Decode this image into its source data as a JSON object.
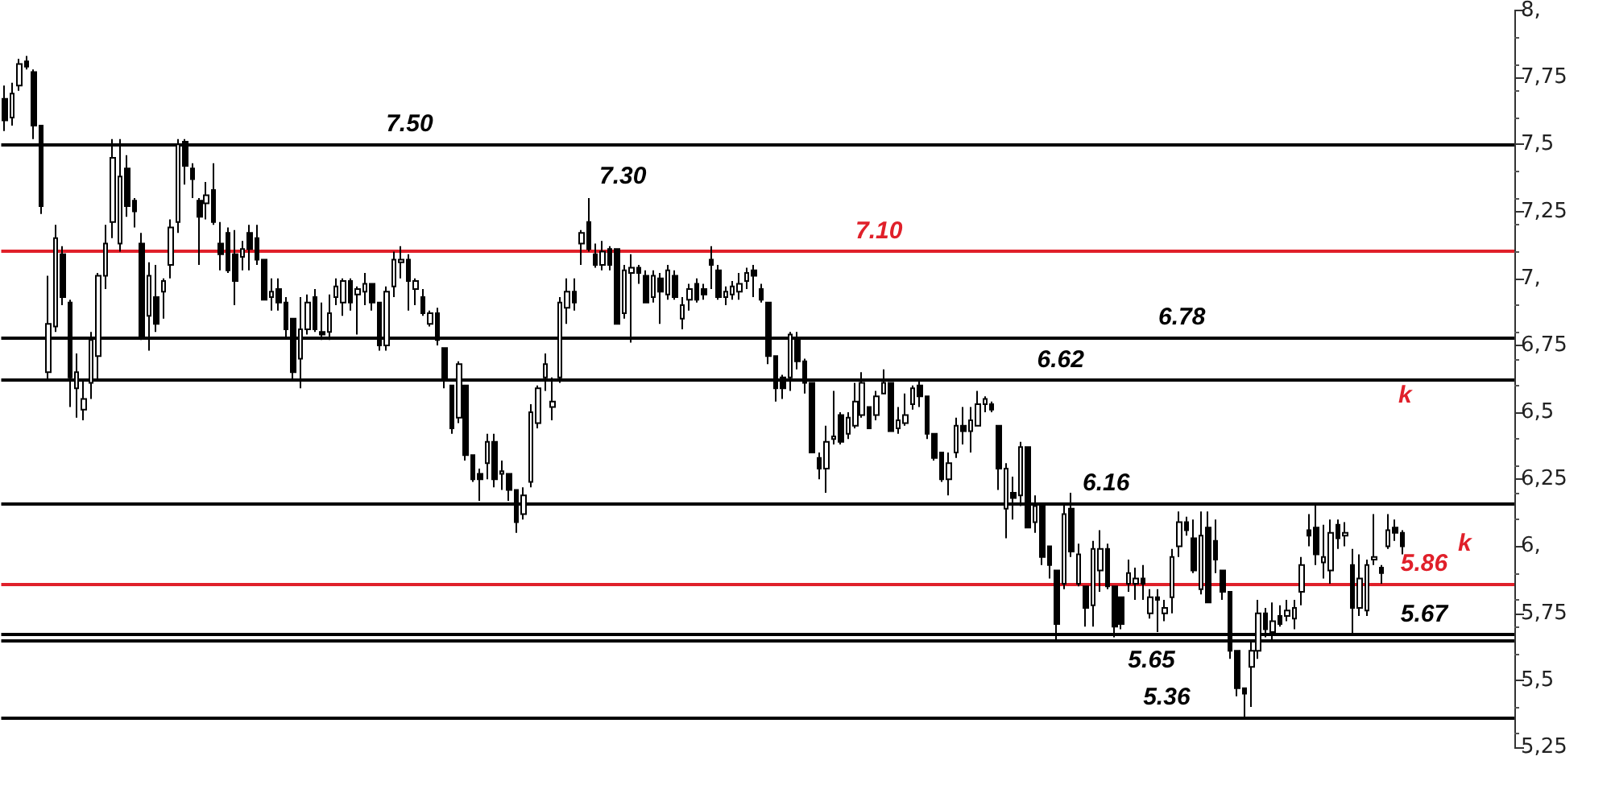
{
  "chart_data": {
    "type": "candlestick",
    "categories": [
      null,
      null,
      null,
      null,
      null,
      null,
      null,
      null,
      null,
      null,
      null,
      null,
      null,
      null,
      null,
      null,
      null,
      null,
      null,
      null,
      null,
      null,
      null,
      null,
      null,
      null,
      null,
      null,
      null,
      null,
      null,
      null,
      null,
      null,
      null,
      null,
      null,
      null,
      null,
      null,
      null,
      null,
      null,
      null,
      null,
      null,
      null,
      null,
      null,
      null,
      null,
      null,
      null,
      null,
      null,
      null,
      null,
      null,
      null,
      null,
      null,
      null,
      null,
      null,
      null,
      null,
      null,
      null,
      null,
      null,
      null,
      null,
      null,
      null,
      null,
      null,
      null,
      null,
      null,
      null,
      null,
      null,
      null,
      null,
      null,
      null,
      null,
      null,
      null,
      null,
      null,
      null,
      null,
      null,
      null,
      null,
      null,
      null,
      null,
      null,
      null,
      null,
      null,
      null,
      null,
      null,
      null,
      null,
      null,
      null,
      null,
      null,
      null,
      null,
      null,
      null,
      null,
      null,
      null,
      null,
      null,
      null,
      null,
      null,
      null,
      null,
      null,
      null,
      null,
      null,
      null,
      null,
      null,
      null,
      null,
      null,
      null,
      null,
      null,
      null,
      null,
      null,
      null,
      null,
      null,
      null,
      null,
      null,
      null,
      null,
      null,
      null,
      null,
      null,
      null,
      null,
      null,
      null,
      null,
      null,
      null,
      null,
      null,
      null,
      null,
      null,
      null,
      null,
      null,
      null,
      null,
      null,
      null,
      null,
      null,
      null,
      null,
      null,
      null,
      null,
      null,
      null,
      null,
      null,
      null,
      null,
      null,
      null,
      null,
      null,
      null,
      null,
      null,
      null,
      null,
      null,
      null,
      null,
      null,
      null,
      null,
      null,
      null,
      null,
      null,
      null,
      null,
      null,
      null,
      null
    ],
    "color": "#000000",
    "ohlc": [
      [
        7.67,
        7.72,
        7.55,
        7.59
      ],
      [
        7.6,
        7.73,
        7.57,
        7.69
      ],
      [
        7.72,
        7.82,
        7.7,
        7.8
      ],
      [
        7.81,
        7.83,
        7.78,
        7.79
      ],
      [
        7.77,
        7.78,
        7.52,
        7.57
      ],
      [
        7.57,
        7.57,
        7.24,
        7.27
      ],
      [
        6.65,
        7.01,
        6.62,
        6.83
      ],
      [
        6.82,
        7.2,
        6.8,
        7.15
      ],
      [
        7.09,
        7.12,
        6.9,
        6.93
      ],
      [
        6.91,
        6.92,
        6.52,
        6.63
      ],
      [
        6.59,
        6.72,
        6.48,
        6.65
      ],
      [
        6.51,
        6.62,
        6.47,
        6.55
      ],
      [
        6.61,
        6.8,
        6.55,
        6.77
      ],
      [
        6.71,
        7.02,
        6.62,
        7.01
      ],
      [
        7.01,
        7.2,
        6.96,
        7.13
      ],
      [
        7.21,
        7.52,
        7.15,
        7.45
      ],
      [
        7.13,
        7.52,
        7.1,
        7.38
      ],
      [
        7.41,
        7.46,
        7.23,
        7.27
      ],
      [
        7.29,
        7.3,
        7.19,
        7.25
      ],
      [
        7.13,
        7.17,
        6.77,
        6.78
      ],
      [
        6.86,
        7.06,
        6.73,
        7.01
      ],
      [
        6.93,
        7.05,
        6.8,
        6.83
      ],
      [
        6.95,
        7.0,
        6.85,
        6.99
      ],
      [
        7.05,
        7.22,
        7.0,
        7.19
      ],
      [
        7.21,
        7.52,
        7.17,
        7.5
      ],
      [
        7.51,
        7.52,
        7.35,
        7.42
      ],
      [
        7.41,
        7.43,
        7.3,
        7.37
      ],
      [
        7.29,
        7.3,
        7.05,
        7.23
      ],
      [
        7.28,
        7.36,
        7.22,
        7.31
      ],
      [
        7.33,
        7.43,
        7.2,
        7.21
      ],
      [
        7.13,
        7.21,
        7.03,
        7.09
      ],
      [
        7.17,
        7.19,
        7.02,
        7.03
      ],
      [
        7.09,
        7.18,
        6.9,
        6.99
      ],
      [
        7.08,
        7.14,
        7.03,
        7.11
      ],
      [
        7.17,
        7.2,
        7.03,
        7.11
      ],
      [
        7.15,
        7.2,
        7.05,
        7.07
      ],
      [
        7.07,
        7.07,
        6.92,
        6.92
      ],
      [
        6.93,
        7.0,
        6.88,
        6.95
      ],
      [
        6.96,
        7.0,
        6.88,
        6.91
      ],
      [
        6.91,
        6.93,
        6.78,
        6.81
      ],
      [
        6.85,
        6.85,
        6.62,
        6.65
      ],
      [
        6.7,
        6.93,
        6.59,
        6.81
      ],
      [
        6.81,
        6.94,
        6.79,
        6.91
      ],
      [
        6.93,
        6.96,
        6.8,
        6.81
      ],
      [
        6.8,
        6.91,
        6.77,
        6.79
      ],
      [
        6.8,
        6.94,
        6.77,
        6.87
      ],
      [
        6.93,
        7.0,
        6.9,
        6.97
      ],
      [
        6.91,
        7.0,
        6.86,
        6.99
      ],
      [
        6.99,
        7.0,
        6.88,
        6.91
      ],
      [
        6.94,
        6.97,
        6.79,
        6.96
      ],
      [
        6.95,
        7.02,
        6.9,
        6.98
      ],
      [
        6.98,
        6.98,
        6.88,
        6.91
      ],
      [
        6.91,
        6.91,
        6.73,
        6.75
      ],
      [
        6.75,
        6.97,
        6.73,
        6.95
      ],
      [
        6.97,
        7.1,
        6.93,
        7.07
      ],
      [
        7.06,
        7.12,
        7.0,
        7.07
      ],
      [
        7.07,
        7.09,
        6.88,
        6.99
      ],
      [
        6.96,
        7.0,
        6.9,
        6.99
      ],
      [
        6.93,
        6.96,
        6.86,
        6.87
      ],
      [
        6.83,
        6.88,
        6.82,
        6.87
      ],
      [
        6.87,
        6.89,
        6.75,
        6.77
      ],
      [
        6.74,
        6.74,
        6.59,
        6.62
      ],
      [
        6.6,
        6.6,
        6.42,
        6.44
      ],
      [
        6.48,
        6.69,
        6.46,
        6.68
      ],
      [
        6.6,
        6.6,
        6.32,
        6.34
      ],
      [
        6.34,
        6.34,
        6.24,
        6.25
      ],
      [
        6.27,
        6.29,
        6.17,
        6.25
      ],
      [
        6.31,
        6.42,
        6.25,
        6.39
      ],
      [
        6.39,
        6.42,
        6.22,
        6.25
      ],
      [
        6.27,
        6.32,
        6.21,
        6.28
      ],
      [
        6.27,
        6.27,
        6.17,
        6.21
      ],
      [
        6.21,
        6.21,
        6.05,
        6.09
      ],
      [
        6.12,
        6.22,
        6.1,
        6.19
      ],
      [
        6.24,
        6.53,
        6.22,
        6.5
      ],
      [
        6.46,
        6.6,
        6.44,
        6.59
      ],
      [
        6.63,
        6.72,
        6.58,
        6.68
      ],
      [
        6.52,
        6.63,
        6.47,
        6.54
      ],
      [
        6.63,
        6.93,
        6.61,
        6.91
      ],
      [
        6.89,
        7.0,
        6.83,
        6.95
      ],
      [
        6.95,
        7.0,
        6.88,
        6.91
      ],
      [
        7.13,
        7.18,
        7.05,
        7.17
      ],
      [
        7.21,
        7.3,
        7.1,
        7.11
      ],
      [
        7.09,
        7.13,
        7.04,
        7.05
      ],
      [
        7.05,
        7.14,
        7.03,
        7.1
      ],
      [
        7.11,
        7.12,
        7.03,
        7.05
      ],
      [
        7.11,
        7.11,
        6.83,
        6.83
      ],
      [
        6.87,
        7.05,
        6.85,
        7.03
      ],
      [
        7.02,
        7.09,
        6.76,
        7.04
      ],
      [
        7.04,
        7.05,
        6.98,
        7.02
      ],
      [
        7.01,
        7.03,
        6.91,
        6.91
      ],
      [
        6.93,
        7.03,
        6.91,
        7.01
      ],
      [
        7.0,
        7.02,
        6.83,
        6.95
      ],
      [
        6.94,
        7.05,
        6.92,
        7.03
      ],
      [
        7.01,
        7.03,
        6.92,
        6.93
      ],
      [
        6.85,
        6.93,
        6.81,
        6.9
      ],
      [
        6.92,
        6.98,
        6.88,
        6.96
      ],
      [
        6.98,
        7.0,
        6.91,
        6.92
      ],
      [
        6.96,
        6.98,
        6.92,
        6.94
      ],
      [
        7.07,
        7.12,
        6.96,
        7.05
      ],
      [
        7.03,
        7.05,
        6.92,
        6.93
      ],
      [
        6.93,
        6.97,
        6.9,
        6.95
      ],
      [
        6.94,
        6.99,
        6.92,
        6.97
      ],
      [
        6.95,
        7.02,
        6.92,
        6.98
      ],
      [
        6.99,
        7.04,
        6.96,
        7.02
      ],
      [
        7.03,
        7.05,
        6.93,
        7.01
      ],
      [
        6.96,
        6.98,
        6.91,
        6.92
      ],
      [
        6.91,
        6.91,
        6.68,
        6.71
      ],
      [
        6.71,
        6.71,
        6.54,
        6.59
      ],
      [
        6.63,
        6.64,
        6.55,
        6.59
      ],
      [
        6.63,
        6.8,
        6.58,
        6.79
      ],
      [
        6.77,
        6.8,
        6.66,
        6.69
      ],
      [
        6.69,
        6.7,
        6.57,
        6.61
      ],
      [
        6.61,
        6.61,
        6.35,
        6.35
      ],
      [
        6.33,
        6.35,
        6.25,
        6.29
      ],
      [
        6.29,
        6.45,
        6.2,
        6.39
      ],
      [
        6.4,
        6.58,
        6.38,
        6.41
      ],
      [
        6.49,
        6.5,
        6.38,
        6.39
      ],
      [
        6.42,
        6.5,
        6.4,
        6.48
      ],
      [
        6.45,
        6.61,
        6.44,
        6.54
      ],
      [
        6.49,
        6.65,
        6.48,
        6.61
      ],
      [
        6.52,
        6.52,
        6.44,
        6.44
      ],
      [
        6.49,
        6.58,
        6.47,
        6.56
      ],
      [
        6.57,
        6.66,
        6.57,
        6.61
      ],
      [
        6.61,
        6.61,
        6.43,
        6.43
      ],
      [
        6.44,
        6.52,
        6.42,
        6.47
      ],
      [
        6.46,
        6.57,
        6.45,
        6.49
      ],
      [
        6.53,
        6.6,
        6.51,
        6.59
      ],
      [
        6.6,
        6.62,
        6.52,
        6.56
      ],
      [
        6.56,
        6.56,
        6.4,
        6.42
      ],
      [
        6.42,
        6.42,
        6.32,
        6.33
      ],
      [
        6.35,
        6.35,
        6.24,
        6.25
      ],
      [
        6.25,
        6.35,
        6.19,
        6.31
      ],
      [
        6.35,
        6.48,
        6.33,
        6.45
      ],
      [
        6.45,
        6.52,
        6.38,
        6.43
      ],
      [
        6.43,
        6.52,
        6.35,
        6.47
      ],
      [
        6.45,
        6.58,
        6.45,
        6.53
      ],
      [
        6.53,
        6.56,
        6.5,
        6.55
      ],
      [
        6.53,
        6.54,
        6.5,
        6.51
      ],
      [
        6.45,
        6.45,
        6.21,
        6.29
      ],
      [
        6.14,
        6.31,
        6.03,
        6.29
      ],
      [
        6.2,
        6.26,
        6.1,
        6.18
      ],
      [
        6.19,
        6.39,
        6.15,
        6.37
      ],
      [
        6.37,
        6.37,
        6.07,
        6.07
      ],
      [
        6.09,
        6.19,
        6.05,
        6.15
      ],
      [
        6.15,
        6.15,
        5.93,
        5.96
      ],
      [
        6.0,
        6.0,
        5.88,
        5.93
      ],
      [
        5.91,
        5.91,
        5.65,
        5.71
      ],
      [
        5.86,
        6.16,
        5.84,
        6.12
      ],
      [
        6.14,
        6.2,
        5.96,
        5.98
      ],
      [
        5.86,
        6.01,
        5.85,
        5.97
      ],
      [
        5.85,
        5.85,
        5.7,
        5.77
      ],
      [
        5.78,
        6.02,
        5.7,
        5.99
      ],
      [
        5.91,
        6.06,
        5.83,
        5.99
      ],
      [
        5.99,
        6.01,
        5.84,
        5.85
      ],
      [
        5.85,
        5.85,
        5.66,
        5.7
      ],
      [
        5.81,
        5.81,
        5.69,
        5.71
      ],
      [
        5.86,
        5.95,
        5.83,
        5.9
      ],
      [
        5.86,
        5.92,
        5.8,
        5.88
      ],
      [
        5.88,
        5.93,
        5.8,
        5.86
      ],
      [
        5.75,
        5.84,
        5.73,
        5.81
      ],
      [
        5.81,
        5.84,
        5.68,
        5.8
      ],
      [
        5.75,
        5.8,
        5.72,
        5.77
      ],
      [
        5.81,
        5.99,
        5.75,
        5.96
      ],
      [
        6.0,
        6.13,
        5.96,
        6.09
      ],
      [
        6.09,
        6.11,
        6.04,
        6.06
      ],
      [
        6.03,
        6.1,
        5.9,
        5.91
      ],
      [
        5.84,
        6.13,
        5.82,
        6.04
      ],
      [
        6.07,
        6.13,
        5.79,
        5.79
      ],
      [
        6.02,
        6.1,
        5.9,
        5.95
      ],
      [
        5.91,
        5.91,
        5.8,
        5.83
      ],
      [
        5.83,
        5.83,
        5.58,
        5.61
      ],
      [
        5.61,
        5.61,
        5.44,
        5.47
      ],
      [
        5.47,
        5.47,
        5.36,
        5.45
      ],
      [
        5.55,
        5.65,
        5.4,
        5.61
      ],
      [
        5.61,
        5.8,
        5.58,
        5.75
      ],
      [
        5.75,
        5.77,
        5.66,
        5.69
      ],
      [
        5.68,
        5.79,
        5.65,
        5.72
      ],
      [
        5.74,
        5.78,
        5.7,
        5.71
      ],
      [
        5.74,
        5.8,
        5.72,
        5.76
      ],
      [
        5.73,
        5.8,
        5.69,
        5.77
      ],
      [
        5.83,
        5.96,
        5.78,
        5.93
      ],
      [
        6.06,
        6.12,
        6.0,
        6.04
      ],
      [
        6.07,
        6.16,
        5.93,
        5.97
      ],
      [
        5.94,
        6.08,
        5.88,
        5.96
      ],
      [
        5.91,
        6.1,
        5.86,
        6.05
      ],
      [
        6.08,
        6.1,
        5.99,
        6.03
      ],
      [
        6.04,
        6.09,
        6.0,
        6.05
      ],
      [
        5.93,
        5.99,
        5.67,
        5.77
      ],
      [
        5.77,
        5.97,
        5.74,
        5.88
      ],
      [
        5.76,
        5.95,
        5.74,
        5.93
      ],
      [
        5.95,
        6.12,
        5.93,
        5.96
      ],
      [
        5.92,
        5.93,
        5.86,
        5.9
      ],
      [
        6.0,
        6.12,
        5.99,
        6.06
      ],
      [
        6.07,
        6.1,
        6.02,
        6.05
      ],
      [
        6.05,
        6.06,
        5.97,
        6.0
      ],
      null,
      null,
      null,
      null,
      null,
      null,
      null,
      null,
      null,
      null,
      null,
      null,
      null,
      null,
      null
    ],
    "ylim": [
      5.25,
      8
    ],
    "yticks": [
      {
        "value": 5.25,
        "label": "5,25"
      },
      {
        "value": 5.5,
        "label": "5,5"
      },
      {
        "value": 5.75,
        "label": "5,75"
      },
      {
        "value": 6,
        "label": "6,"
      },
      {
        "value": 6.25,
        "label": "6,25"
      },
      {
        "value": 6.5,
        "label": "6,5"
      },
      {
        "value": 6.75,
        "label": "6,75"
      },
      {
        "value": 7,
        "label": "7,"
      },
      {
        "value": 7.25,
        "label": "7,25"
      },
      {
        "value": 7.5,
        "label": "7,5"
      },
      {
        "value": 7.75,
        "label": "7,75"
      },
      {
        "value": 8,
        "label": "8,"
      }
    ],
    "ref_lines": [
      {
        "axis": "y",
        "value": 7.5,
        "label": "7.50",
        "color": "#000000"
      },
      {
        "axis": "y",
        "value": 7.1,
        "label": "7.10",
        "color": "#e0202a"
      },
      {
        "axis": "y",
        "value": 6.78,
        "label": "6.78",
        "color": "#000000"
      },
      {
        "axis": "y",
        "value": 6.62,
        "label": "6.62",
        "color": "#000000"
      },
      {
        "axis": "y",
        "value": 6.16,
        "label": "6.16",
        "color": "#000000"
      },
      {
        "axis": "y",
        "value": 5.65,
        "label": "5.65",
        "color": "#000000"
      },
      {
        "axis": "y",
        "value": 5.36,
        "label": "5.36",
        "color": "#000000"
      },
      {
        "axis": "y",
        "value": 5.67,
        "label": "5.67",
        "color": "#000000"
      },
      {
        "axis": "y",
        "value": 5.86,
        "label": "5.86",
        "color": "#e0202a"
      }
    ],
    "annotations": [
      "7.30",
      "k",
      "k"
    ],
    "grid": false
  }
}
